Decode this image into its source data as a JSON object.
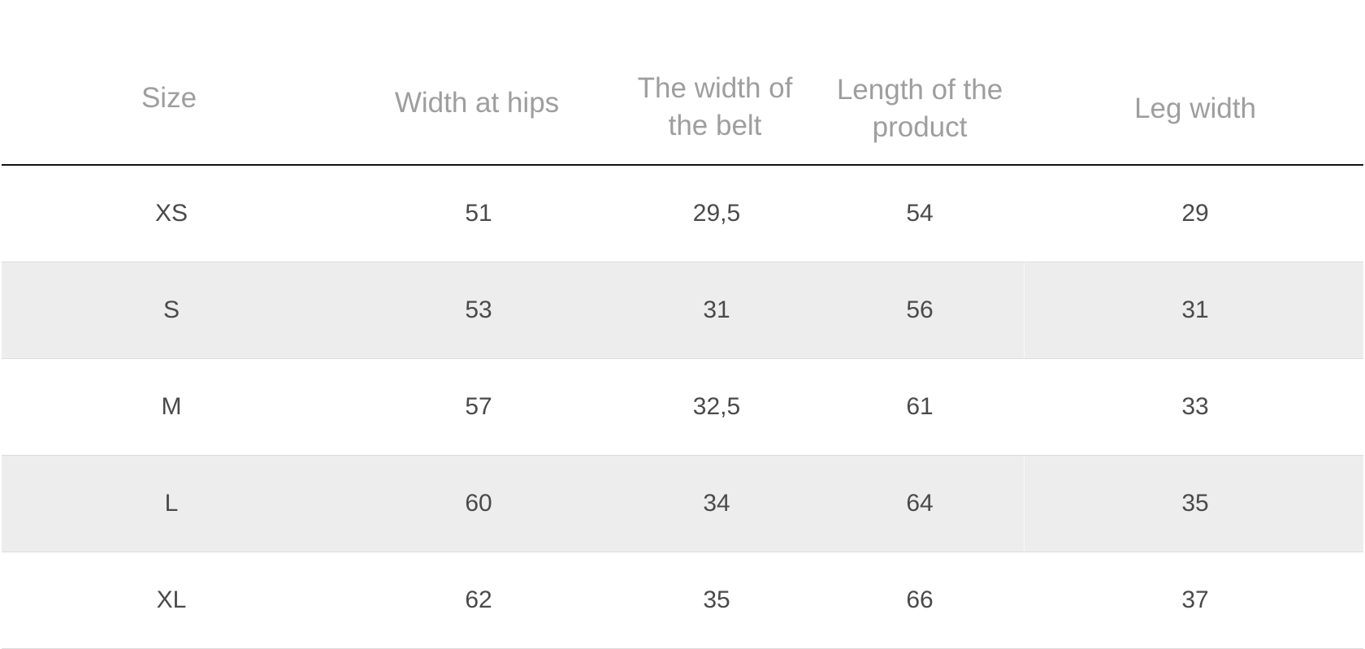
{
  "table": {
    "headers": [
      "Size",
      "Width at hips",
      "The width of the belt",
      "Length of the product",
      "Leg width"
    ],
    "header_lines": [
      [
        "Size"
      ],
      [
        "Width at hips"
      ],
      [
        "The width of",
        "the belt"
      ],
      [
        "Length of the",
        "product"
      ],
      [
        "Leg width"
      ]
    ],
    "rows": [
      [
        "XS",
        "51",
        "29,5",
        "54",
        "29"
      ],
      [
        "S",
        "53",
        "31",
        "56",
        "31"
      ],
      [
        "M",
        "57",
        "32,5",
        "61",
        "33"
      ],
      [
        "L",
        "60",
        "34",
        "64",
        "35"
      ],
      [
        "XL",
        "62",
        "35",
        "66",
        "37"
      ]
    ],
    "colors": {
      "header_text": "#9e9e9e",
      "cell_text": "#4a4a4a",
      "stripe": "#ededed",
      "header_rule": "#111111"
    }
  }
}
